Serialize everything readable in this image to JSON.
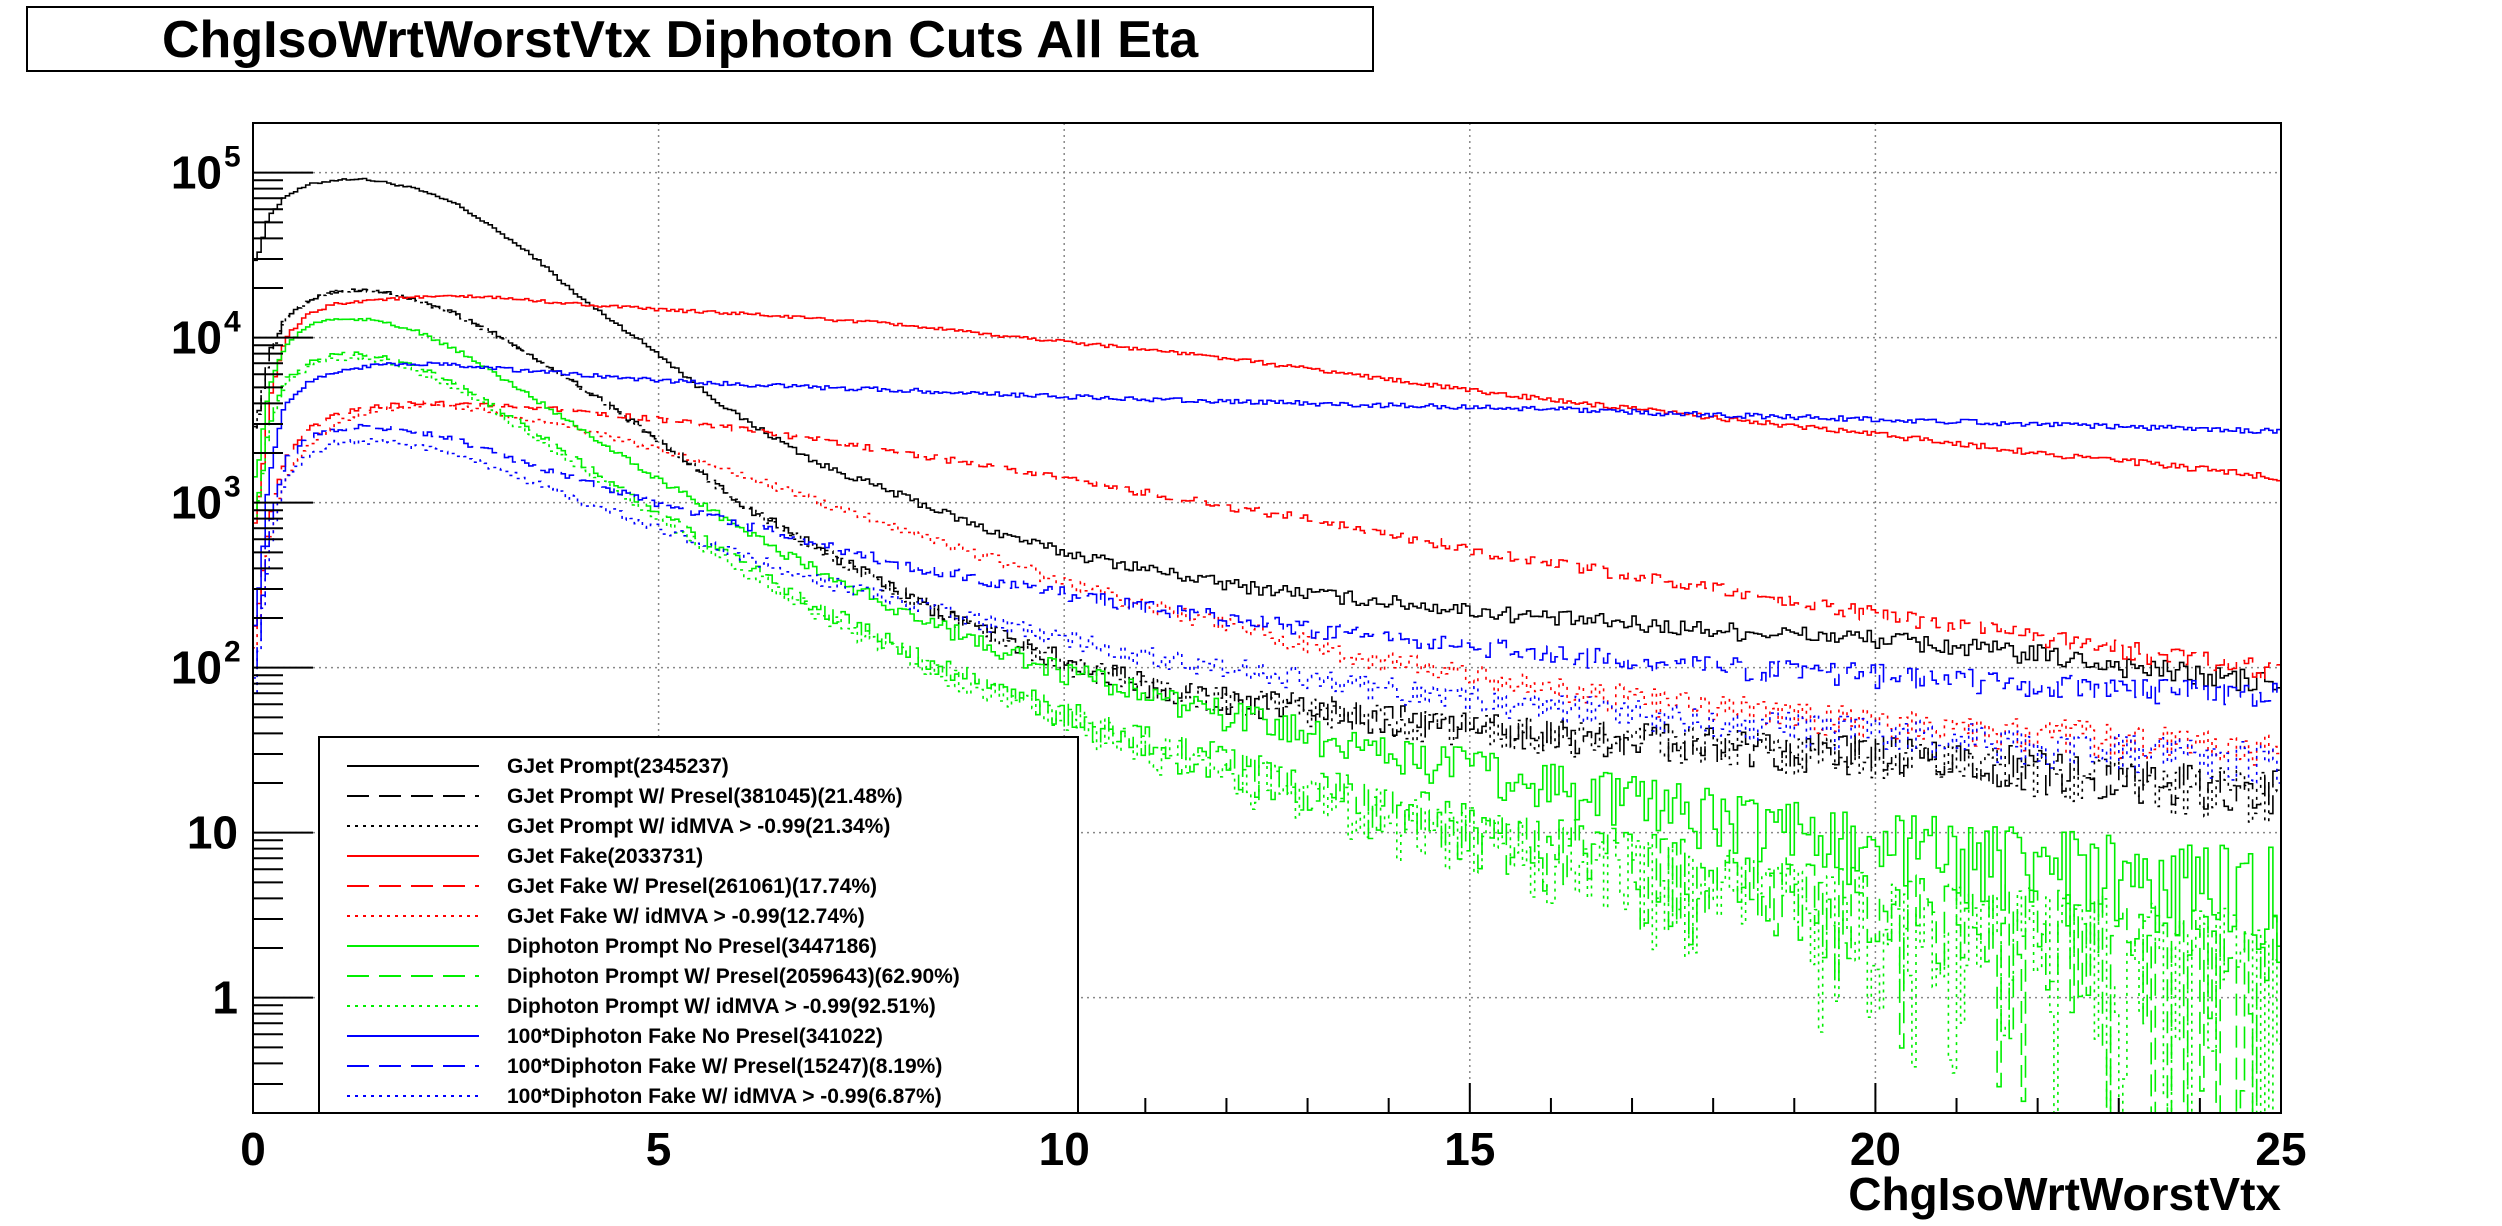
{
  "chart_data": {
    "type": "line",
    "title": "ChgIsoWrtWorstVtx Diphoton Cuts All Eta",
    "xlabel": "ChgIsoWrtWorstVtx",
    "ylabel": "",
    "xlim": [
      0,
      25
    ],
    "ylim": [
      0.2,
      200000
    ],
    "y_scale": "log",
    "grid": true,
    "legend_position": "bottom-left",
    "x_ticks": [
      "0",
      "5",
      "10",
      "15",
      "20",
      "25"
    ],
    "y_ticks": [
      {
        "value": 1,
        "label": "1"
      },
      {
        "value": 10,
        "label": "10"
      },
      {
        "value": 100,
        "label": "10",
        "exp": "2"
      },
      {
        "value": 1000,
        "label": "10",
        "exp": "3"
      },
      {
        "value": 10000,
        "label": "10",
        "exp": "4"
      },
      {
        "value": 100000,
        "label": "10",
        "exp": "5"
      }
    ],
    "series": [
      {
        "name": "GJet Prompt(2345237)",
        "color": "#000000",
        "dash": "solid",
        "x": [
          0.05,
          0.2,
          0.4,
          0.7,
          1.0,
          1.3,
          1.6,
          2.0,
          2.5,
          3,
          3.5,
          4,
          4.5,
          5,
          5.5,
          6,
          7,
          8,
          9,
          10,
          11,
          12,
          14,
          16,
          18,
          20,
          22,
          24,
          25
        ],
        "y": [
          30000,
          55000,
          72000,
          85000,
          90000,
          92000,
          88000,
          80000,
          65000,
          45000,
          30000,
          18000,
          12000,
          8000,
          5000,
          3300,
          1700,
          1100,
          700,
          500,
          400,
          320,
          250,
          200,
          170,
          150,
          120,
          90,
          80
        ]
      },
      {
        "name": "GJet Prompt W/ Presel(381045)(21.48%)",
        "color": "#000000",
        "dash": "long",
        "x": [
          0.05,
          0.2,
          0.4,
          0.7,
          1.0,
          1.3,
          1.6,
          2.0,
          2.5,
          3,
          3.5,
          4,
          4.5,
          5,
          5.5,
          6,
          7,
          8,
          9,
          10,
          11,
          12,
          14,
          16,
          18,
          20,
          22,
          24,
          25
        ],
        "y": [
          3000,
          8000,
          13000,
          17000,
          19000,
          19500,
          19000,
          17000,
          14000,
          10500,
          7500,
          5200,
          3600,
          2400,
          1600,
          1000,
          520,
          280,
          170,
          110,
          80,
          65,
          50,
          40,
          35,
          30,
          25,
          20,
          18
        ]
      },
      {
        "name": "GJet Prompt W/ idMVA > -0.99(21.34%)",
        "color": "#000000",
        "dash": "dot",
        "x": [
          0.05,
          0.2,
          0.4,
          0.7,
          1.0,
          1.3,
          1.6,
          2.0,
          2.5,
          3,
          3.5,
          4,
          4.5,
          5,
          5.5,
          6,
          7,
          8,
          9,
          10,
          11,
          12,
          14,
          16,
          18,
          20,
          22,
          24,
          25
        ],
        "y": [
          2950,
          7900,
          12900,
          16900,
          18900,
          19400,
          18900,
          16900,
          13900,
          10400,
          7400,
          5100,
          3550,
          2350,
          1580,
          990,
          510,
          275,
          165,
          108,
          78,
          63,
          48,
          39,
          34,
          29,
          24,
          19,
          17
        ]
      },
      {
        "name": "GJet Fake(2033731)",
        "color": "#ff0000",
        "dash": "solid",
        "x": [
          0.05,
          0.2,
          0.4,
          0.7,
          1.0,
          1.5,
          2,
          2.5,
          3,
          4,
          5,
          6,
          7,
          8,
          9,
          10,
          11,
          12,
          13,
          14,
          15,
          16,
          17,
          18,
          19,
          20,
          21,
          22,
          23,
          24,
          25
        ],
        "y": [
          800,
          4000,
          10000,
          14000,
          16000,
          17000,
          17500,
          17800,
          17500,
          16000,
          14800,
          14000,
          13000,
          12000,
          10500,
          9500,
          8500,
          7500,
          6500,
          5600,
          4800,
          4200,
          3700,
          3300,
          2900,
          2600,
          2300,
          2000,
          1800,
          1600,
          1400
        ]
      },
      {
        "name": "GJet Fake W/ Presel(261061)(17.74%)",
        "color": "#ff0000",
        "dash": "long",
        "x": [
          0.05,
          0.2,
          0.4,
          0.7,
          1.0,
          1.5,
          2,
          2.5,
          3,
          4,
          5,
          6,
          7,
          8,
          9,
          10,
          11,
          12,
          13,
          14,
          15,
          16,
          17,
          18,
          19,
          20,
          21,
          22,
          23,
          24,
          25
        ],
        "y": [
          200,
          800,
          1800,
          2800,
          3400,
          3800,
          4000,
          4000,
          3900,
          3600,
          3200,
          2800,
          2400,
          2000,
          1700,
          1400,
          1150,
          950,
          800,
          650,
          520,
          430,
          360,
          300,
          250,
          210,
          180,
          150,
          130,
          110,
          95
        ]
      },
      {
        "name": "GJet Fake W/ idMVA > -0.99(12.74%)",
        "color": "#ff0000",
        "dash": "dot",
        "x": [
          0.05,
          0.2,
          0.4,
          0.7,
          1.0,
          1.5,
          2,
          2.5,
          3,
          4,
          5,
          6,
          7,
          8,
          9,
          10,
          11,
          12,
          13,
          14,
          15,
          16,
          17,
          18,
          19,
          20,
          21,
          22,
          23,
          24,
          25
        ],
        "y": [
          150,
          600,
          1400,
          2300,
          3000,
          3600,
          3900,
          3800,
          3500,
          2800,
          2100,
          1500,
          1000,
          700,
          480,
          330,
          240,
          180,
          140,
          110,
          90,
          75,
          65,
          58,
          52,
          47,
          43,
          40,
          37,
          34,
          32
        ]
      },
      {
        "name": "Diphoton Prompt No Presel(3447186)",
        "color": "#00ee00",
        "dash": "solid",
        "x": [
          0.05,
          0.2,
          0.4,
          0.7,
          1.0,
          1.3,
          1.6,
          2.0,
          2.5,
          3,
          3.5,
          4,
          4.5,
          5,
          5.5,
          6,
          7,
          8,
          9,
          10,
          11,
          12,
          13,
          14,
          15,
          16,
          17,
          18,
          19,
          20,
          21,
          22,
          23,
          24,
          25
        ],
        "y": [
          1500,
          5000,
          9000,
          12000,
          13000,
          13000,
          12500,
          11000,
          8500,
          6000,
          4200,
          2900,
          2000,
          1400,
          1000,
          700,
          380,
          220,
          140,
          95,
          70,
          52,
          40,
          32,
          25,
          20,
          16,
          13,
          11,
          9,
          8,
          7,
          6,
          5.5,
          5
        ]
      },
      {
        "name": "Diphoton Prompt W/ Presel(2059643)(62.90%)",
        "color": "#00ee00",
        "dash": "long",
        "x": [
          0.05,
          0.2,
          0.4,
          0.7,
          1.0,
          1.3,
          1.6,
          2.0,
          2.5,
          3,
          3.5,
          4,
          4.5,
          5,
          5.5,
          6,
          7,
          8,
          9,
          10,
          11,
          12,
          13,
          14,
          15,
          16,
          17,
          18,
          19,
          20,
          21,
          22,
          23,
          24,
          25
        ],
        "y": [
          900,
          3000,
          5500,
          7200,
          8000,
          8000,
          7700,
          6800,
          5300,
          3800,
          2650,
          1800,
          1250,
          870,
          620,
          440,
          230,
          130,
          80,
          52,
          36,
          26,
          19,
          14,
          11,
          8.5,
          6.5,
          5,
          4,
          3.2,
          2.7,
          2.3,
          2,
          1.8,
          1.6
        ]
      },
      {
        "name": "Diphoton Prompt W/ idMVA > -0.99(92.51%)",
        "color": "#00ee00",
        "dash": "dot",
        "x": [
          0.05,
          0.2,
          0.4,
          0.7,
          1.0,
          1.3,
          1.6,
          2.0,
          2.5,
          3,
          3.5,
          4,
          4.5,
          5,
          5.5,
          6,
          7,
          8,
          9,
          10,
          11,
          12,
          13,
          14,
          15,
          16,
          17,
          18,
          19,
          20,
          21,
          22,
          23,
          24,
          25
        ],
        "y": [
          850,
          2800,
          5100,
          6700,
          7400,
          7400,
          7100,
          6300,
          4900,
          3500,
          2450,
          1650,
          1150,
          800,
          570,
          400,
          210,
          118,
          72,
          47,
          33,
          23,
          17,
          12.5,
          9.5,
          7.5,
          5.8,
          4.5,
          3.6,
          3,
          2.5,
          2.1,
          1.9,
          1.7,
          1.5
        ]
      },
      {
        "name": "100*Diphoton Fake No Presel(341022)",
        "color": "#0000ff",
        "dash": "solid",
        "x": [
          0.05,
          0.2,
          0.4,
          0.7,
          1.0,
          1.5,
          2,
          2.5,
          3,
          4,
          5,
          6,
          7,
          8,
          9,
          10,
          12,
          14,
          16,
          18,
          20,
          22,
          24,
          25
        ],
        "y": [
          200,
          1500,
          4000,
          5500,
          6200,
          6800,
          7000,
          6800,
          6500,
          6000,
          5500,
          5200,
          5000,
          4800,
          4600,
          4400,
          4100,
          3900,
          3700,
          3400,
          3200,
          3000,
          2800,
          2700
        ]
      },
      {
        "name": "100*Diphoton Fake W/ Presel(15247)(8.19%)",
        "color": "#0000ff",
        "dash": "long",
        "x": [
          0.05,
          0.2,
          0.4,
          0.7,
          1.0,
          1.5,
          2,
          2.5,
          3,
          4,
          5,
          6,
          7,
          8,
          9,
          10,
          11,
          12,
          13,
          14,
          15,
          16,
          17,
          18,
          19,
          20,
          21,
          22,
          23,
          24,
          25
        ],
        "y": [
          100,
          700,
          1800,
          2500,
          2800,
          2900,
          2700,
          2400,
          2000,
          1400,
          1000,
          750,
          560,
          430,
          340,
          280,
          230,
          200,
          170,
          150,
          135,
          120,
          110,
          100,
          95,
          90,
          85,
          80,
          75,
          72,
          70
        ]
      },
      {
        "name": "100*Diphoton Fake W/ idMVA > -0.99(6.87%)",
        "color": "#0000ff",
        "dash": "dot",
        "x": [
          0.05,
          0.2,
          0.4,
          0.7,
          1.0,
          1.5,
          2,
          2.5,
          3,
          4,
          5,
          6,
          7,
          8,
          9,
          10,
          11,
          12,
          13,
          14,
          15,
          16,
          17,
          18,
          19,
          20,
          21,
          22,
          23,
          24,
          25
        ],
        "y": [
          80,
          550,
          1400,
          2000,
          2300,
          2350,
          2200,
          1950,
          1600,
          1050,
          700,
          480,
          340,
          250,
          190,
          150,
          120,
          100,
          85,
          75,
          65,
          58,
          52,
          47,
          43,
          40,
          37,
          34,
          31,
          29,
          27
        ]
      }
    ]
  }
}
